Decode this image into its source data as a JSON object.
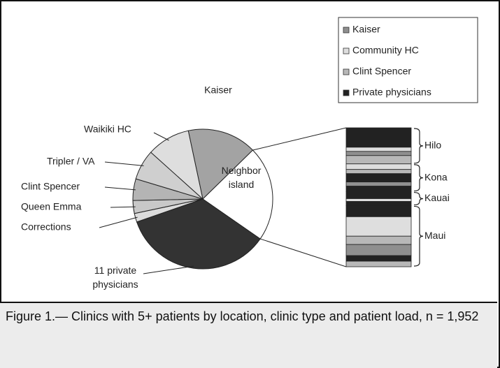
{
  "chart_data": {
    "type": "pie",
    "categories": [
      "Kaiser",
      "Neighbor island",
      "11 private physicians",
      "Corrections",
      "Queen Emma",
      "Clint Spencer",
      "Tripler / VA",
      "Waikiki HC"
    ],
    "values": [
      16,
      22,
      35,
      2,
      3,
      5,
      7,
      10
    ],
    "colors": [
      "#a3a3a3",
      "#ffffff",
      "#333333",
      "#dcdcdc",
      "#c8c8c8",
      "#b4b4b4",
      "#cfcfcf",
      "#dedede"
    ],
    "legend": [
      {
        "name": "Kaiser",
        "color": "#8f8f8f"
      },
      {
        "name": "Community HC",
        "color": "#dedede"
      },
      {
        "name": "Clint Spencer",
        "color": "#b8b8b8"
      },
      {
        "name": "Private physicians",
        "color": "#222222"
      }
    ],
    "bar": [
      {
        "name": "Hilo",
        "segments": [
          {
            "series": 3,
            "value": 14
          },
          {
            "series": 1,
            "value": 3
          },
          {
            "series": 0,
            "value": 3
          },
          {
            "series": 2,
            "value": 6
          }
        ]
      },
      {
        "name": "Kona",
        "segments": [
          {
            "series": 1,
            "value": 4
          },
          {
            "series": 2,
            "value": 3
          },
          {
            "series": 3,
            "value": 6
          },
          {
            "series": 0,
            "value": 3
          },
          {
            "series": 3,
            "value": 4
          }
        ]
      },
      {
        "name": "Kauai",
        "segments": [
          {
            "series": 3,
            "value": 5
          },
          {
            "series": 1,
            "value": 2
          },
          {
            "series": 3,
            "value": 3
          }
        ]
      },
      {
        "name": "Maui",
        "segments": [
          {
            "series": 3,
            "value": 8
          },
          {
            "series": 1,
            "value": 14
          },
          {
            "series": 2,
            "value": 6
          },
          {
            "series": 0,
            "value": 8
          },
          {
            "series": 3,
            "value": 4
          },
          {
            "series": 2,
            "value": 4
          }
        ]
      }
    ]
  },
  "caption": "Figure 1.— Clinics with 5+ patients by location, clinic type and patient load, n = 1,952"
}
